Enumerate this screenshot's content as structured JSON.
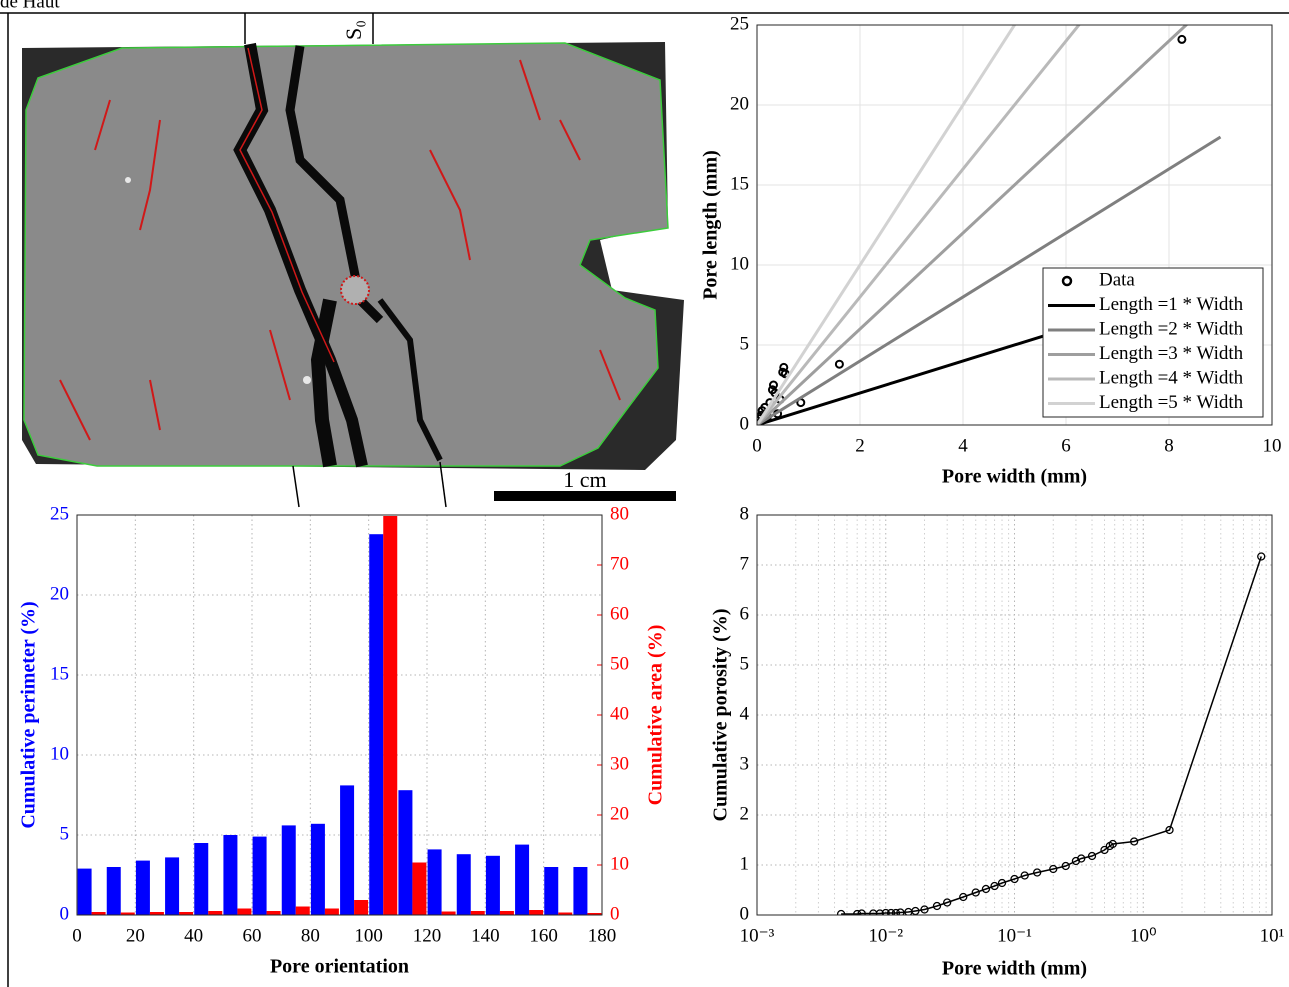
{
  "header": "de Haut",
  "figure_image": {
    "label": "S₀",
    "scale_bar": "1 cm"
  },
  "chart_data": [
    {
      "type": "scatter",
      "xlabel": "Pore width (mm)",
      "ylabel": "Pore length (mm)",
      "xlim": [
        0,
        10
      ],
      "ylim": [
        0,
        25
      ],
      "xticks": [
        0,
        2,
        4,
        6,
        8,
        10
      ],
      "yticks": [
        0,
        5,
        10,
        15,
        20,
        25
      ],
      "grid": "solid",
      "legend": "lower right",
      "series": [
        {
          "name": "Data",
          "type": "scatter",
          "color": "#000000",
          "x": [
            0.02,
            0.05,
            0.08,
            0.1,
            0.15,
            0.2,
            0.25,
            0.3,
            0.32,
            0.35,
            0.4,
            0.45,
            0.5,
            0.52,
            0.55,
            0.85,
            1.6,
            8.25
          ],
          "values": [
            0.1,
            0.4,
            0.6,
            0.9,
            1.1,
            0.5,
            1.4,
            2.2,
            2.5,
            2.0,
            0.7,
            1.6,
            3.3,
            3.6,
            3.2,
            1.4,
            3.8,
            24.1
          ]
        },
        {
          "name": "Length =1 * Width",
          "type": "line",
          "color": "#000000",
          "x": [
            0,
            9
          ],
          "values": [
            0,
            9
          ]
        },
        {
          "name": "Length =2 * Width",
          "type": "line",
          "color": "#7f7f7f",
          "x": [
            0,
            9
          ],
          "values": [
            0,
            18
          ]
        },
        {
          "name": "Length =3 * Width",
          "type": "line",
          "color": "#9e9e9e",
          "x": [
            0,
            9
          ],
          "values": [
            0,
            27
          ]
        },
        {
          "name": "Length =4 * Width",
          "type": "line",
          "color": "#b9b9b9",
          "x": [
            0,
            9
          ],
          "values": [
            0,
            36
          ]
        },
        {
          "name": "Length =5 * Width",
          "type": "line",
          "color": "#d2d2d2",
          "x": [
            0,
            9
          ],
          "values": [
            0,
            45
          ]
        }
      ]
    },
    {
      "type": "bar",
      "xlabel": "Pore orientation",
      "ylabel": "Cumulative perimeter (%)",
      "y2label": "Cumulative area (%)",
      "x": [
        5,
        15,
        25,
        35,
        45,
        55,
        65,
        75,
        85,
        95,
        105,
        115,
        125,
        135,
        145,
        155,
        165,
        175
      ],
      "xlim": [
        0,
        180
      ],
      "xticks": [
        0,
        20,
        40,
        60,
        80,
        100,
        120,
        140,
        160,
        180
      ],
      "ylim": [
        0,
        25
      ],
      "yticks": [
        0,
        5,
        10,
        15,
        20,
        25
      ],
      "y2lim": [
        0,
        80
      ],
      "y2ticks": [
        0,
        10,
        20,
        30,
        40,
        50,
        60,
        70,
        80
      ],
      "grid": "dotted",
      "series": [
        {
          "color": "#0000ff",
          "values": [
            2.9,
            3.0,
            3.4,
            3.6,
            4.5,
            5.0,
            4.9,
            5.6,
            5.7,
            8.1,
            23.8,
            7.8,
            4.1,
            3.8,
            3.7,
            4.4,
            3.0,
            3.0
          ]
        },
        {
          "color": "#ff0000",
          "axis": "y2",
          "values": [
            0.6,
            0.5,
            0.6,
            0.6,
            0.8,
            1.3,
            0.8,
            1.7,
            1.3,
            3.0,
            79.8,
            10.5,
            0.7,
            0.8,
            0.8,
            1.0,
            0.5,
            0.4
          ]
        }
      ]
    },
    {
      "type": "line",
      "xlabel": "Pore width (mm)",
      "ylabel": "Cumulative porosity (%)",
      "xscale": "log",
      "xlim": [
        0.001,
        10
      ],
      "xticks": [
        {
          "value": 0.001,
          "label": "10⁻³"
        },
        {
          "value": 0.01,
          "label": "10⁻²"
        },
        {
          "value": 0.1,
          "label": "10⁻¹"
        },
        {
          "value": 1,
          "label": "10⁰"
        },
        {
          "value": 10,
          "label": "10¹"
        }
      ],
      "ylim": [
        0,
        8
      ],
      "yticks": [
        0,
        1,
        2,
        3,
        4,
        5,
        6,
        7,
        8
      ],
      "grid": "dotted",
      "minor_grid": true,
      "series": [
        {
          "color": "#000000",
          "marker": "circle",
          "x": [
            0.0045,
            0.006,
            0.0065,
            0.008,
            0.009,
            0.01,
            0.011,
            0.012,
            0.013,
            0.015,
            0.017,
            0.02,
            0.025,
            0.03,
            0.04,
            0.05,
            0.06,
            0.07,
            0.08,
            0.1,
            0.12,
            0.15,
            0.2,
            0.25,
            0.3,
            0.33,
            0.4,
            0.5,
            0.55,
            0.58,
            0.85,
            1.6,
            8.25
          ],
          "values": [
            0.02,
            0.02,
            0.03,
            0.03,
            0.03,
            0.04,
            0.04,
            0.04,
            0.05,
            0.06,
            0.08,
            0.11,
            0.18,
            0.25,
            0.36,
            0.45,
            0.52,
            0.58,
            0.64,
            0.72,
            0.79,
            0.85,
            0.92,
            0.98,
            1.08,
            1.13,
            1.18,
            1.3,
            1.38,
            1.42,
            1.47,
            1.7,
            7.17
          ]
        }
      ]
    }
  ]
}
